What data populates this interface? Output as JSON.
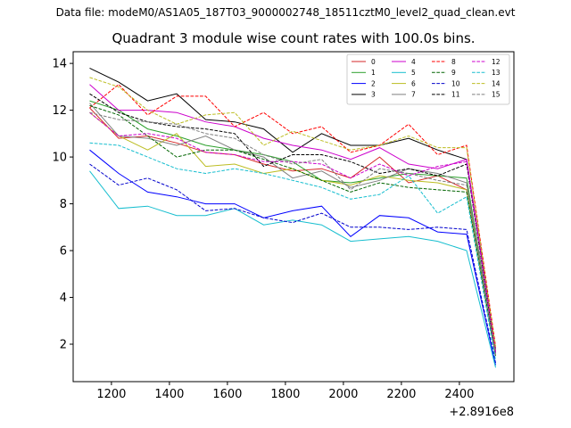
{
  "figure": {
    "suptitle": "Data file: modeM0/AS1A05_187T03_9000002748_18511cztM0_level2_quad_clean.evt",
    "offset_label": "+2.8916e8"
  },
  "chart_data": {
    "type": "line",
    "title": "Quadrant 3 module wise count rates with 100.0s bins.",
    "xlabel": "",
    "ylabel": "",
    "x_offset": 289160000,
    "x": [
      1125,
      1225,
      1325,
      1425,
      1525,
      1625,
      1725,
      1825,
      1925,
      2025,
      2125,
      2225,
      2325,
      2425,
      2525
    ],
    "xlim": [
      1068,
      2588
    ],
    "ylim": [
      0.4,
      14.5
    ],
    "xticks": [
      1200,
      1400,
      1600,
      1800,
      2000,
      2200,
      2400
    ],
    "yticks": [
      2,
      4,
      6,
      8,
      10,
      12,
      14
    ],
    "legend_position": "top-right",
    "legend_columns": 4,
    "series": [
      {
        "name": "0",
        "color": "#d62728",
        "dash": "solid",
        "values": [
          12.1,
          10.8,
          10.9,
          10.6,
          10.2,
          10.1,
          9.7,
          9.4,
          9.5,
          9.1,
          10.0,
          8.9,
          9.2,
          8.6,
          1.5
        ]
      },
      {
        "name": "1",
        "color": "#2ca02c",
        "dash": "solid",
        "values": [
          12.4,
          12.0,
          11.2,
          10.9,
          10.5,
          10.3,
          10.1,
          9.8,
          9.0,
          8.9,
          9.1,
          9.3,
          9.2,
          9.1,
          1.6
        ]
      },
      {
        "name": "2",
        "color": "#0000ff",
        "dash": "solid",
        "values": [
          10.3,
          9.3,
          8.5,
          8.3,
          8.0,
          8.0,
          7.4,
          7.7,
          7.9,
          6.6,
          7.5,
          7.4,
          6.8,
          6.7,
          1.1
        ]
      },
      {
        "name": "3",
        "color": "#000000",
        "dash": "solid",
        "values": [
          13.8,
          13.2,
          12.4,
          12.7,
          11.6,
          11.5,
          11.2,
          10.2,
          11.0,
          10.5,
          10.5,
          10.8,
          10.3,
          9.9,
          1.8
        ]
      },
      {
        "name": "4",
        "color": "#cc00cc",
        "dash": "solid",
        "values": [
          13.1,
          12.0,
          12.0,
          11.9,
          11.5,
          11.3,
          10.8,
          10.5,
          10.3,
          9.9,
          10.4,
          9.7,
          9.5,
          9.9,
          1.7
        ]
      },
      {
        "name": "5",
        "color": "#17becf",
        "dash": "solid",
        "values": [
          9.4,
          7.8,
          7.9,
          7.5,
          7.5,
          7.8,
          7.1,
          7.3,
          7.1,
          6.4,
          6.5,
          6.6,
          6.4,
          6.0,
          1.0
        ]
      },
      {
        "name": "6",
        "color": "#bcbd22",
        "dash": "solid",
        "values": [
          11.9,
          10.9,
          10.3,
          11.0,
          9.6,
          9.7,
          9.3,
          9.5,
          9.0,
          8.8,
          9.2,
          9.0,
          8.9,
          8.6,
          1.5
        ]
      },
      {
        "name": "7",
        "color": "#7f7f7f",
        "dash": "solid",
        "values": [
          12.3,
          10.9,
          10.8,
          10.5,
          10.9,
          10.3,
          10.0,
          9.1,
          9.4,
          8.7,
          9.0,
          9.5,
          9.3,
          8.9,
          1.6
        ]
      },
      {
        "name": "8",
        "color": "#ff0000",
        "dash": "dashed",
        "values": [
          12.1,
          13.1,
          11.8,
          12.6,
          12.6,
          11.3,
          11.9,
          11.0,
          11.3,
          10.2,
          10.5,
          11.4,
          10.1,
          10.5,
          1.9
        ]
      },
      {
        "name": "9",
        "color": "#006400",
        "dash": "dashed",
        "values": [
          12.2,
          11.8,
          10.9,
          10.0,
          10.3,
          10.3,
          9.9,
          9.5,
          9.0,
          8.5,
          8.9,
          8.7,
          8.6,
          8.5,
          1.5
        ]
      },
      {
        "name": "10",
        "color": "#0000cc",
        "dash": "dashed",
        "values": [
          9.7,
          8.8,
          9.1,
          8.6,
          7.7,
          7.8,
          7.4,
          7.2,
          7.6,
          7.0,
          7.0,
          6.9,
          7.0,
          6.9,
          1.2
        ]
      },
      {
        "name": "11",
        "color": "#000000",
        "dash": "dashed",
        "values": [
          12.7,
          11.9,
          11.5,
          11.3,
          11.2,
          11.0,
          9.6,
          10.1,
          10.1,
          9.8,
          9.3,
          9.5,
          9.2,
          9.7,
          1.6
        ]
      },
      {
        "name": "12",
        "color": "#cc00cc",
        "dash": "dashed",
        "values": [
          11.9,
          10.9,
          11.0,
          10.8,
          10.2,
          10.1,
          9.8,
          9.8,
          9.7,
          9.1,
          9.7,
          9.2,
          9.6,
          9.8,
          1.6
        ]
      },
      {
        "name": "13",
        "color": "#17becf",
        "dash": "dashed",
        "values": [
          10.6,
          10.5,
          10.0,
          9.5,
          9.3,
          9.5,
          9.3,
          9.0,
          8.7,
          8.2,
          8.4,
          9.2,
          7.6,
          8.3,
          1.3
        ]
      },
      {
        "name": "14",
        "color": "#bcbd22",
        "dash": "dashed",
        "values": [
          13.4,
          13.0,
          12.0,
          11.4,
          11.8,
          11.9,
          10.5,
          11.1,
          10.7,
          10.3,
          10.5,
          10.9,
          10.4,
          10.4,
          1.8
        ]
      },
      {
        "name": "15",
        "color": "#7f7f7f",
        "dash": "dashed",
        "values": [
          11.9,
          11.6,
          11.5,
          11.4,
          11.0,
          10.8,
          10.1,
          9.7,
          9.9,
          8.6,
          9.5,
          9.3,
          9.0,
          8.8,
          1.5
        ]
      }
    ]
  }
}
